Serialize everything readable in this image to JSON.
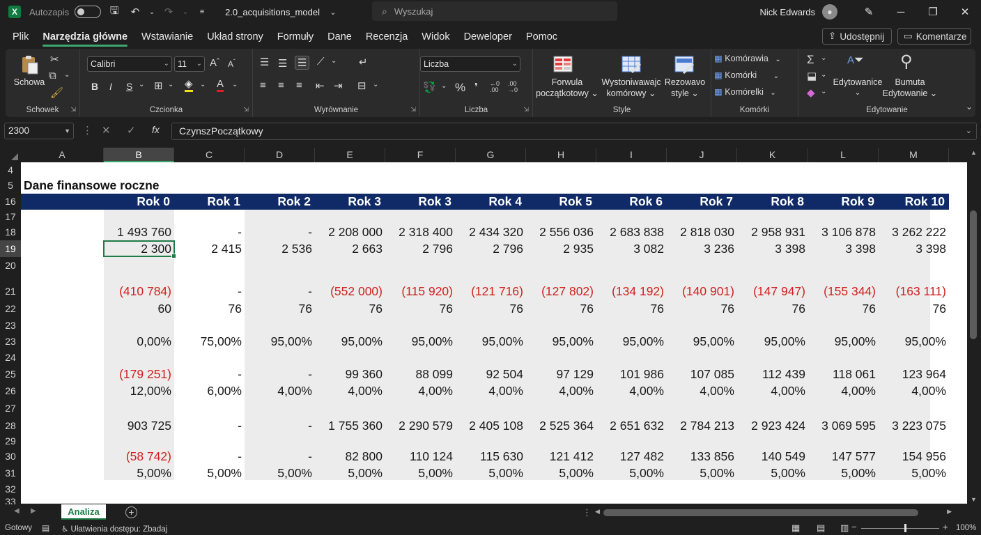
{
  "titlebar": {
    "autosave_label": "Autozapis",
    "filename": "2.0_acquisitions_model",
    "search_placeholder": "Wyszukaj",
    "user_name": "Nick Edwards"
  },
  "menu": {
    "items": [
      "Plik",
      "Narzędzia główne",
      "Wstawianie",
      "Układ strony",
      "Formuły",
      "Dane",
      "Recenzja",
      "Widok",
      "Deweloper",
      "Pomoc"
    ],
    "active_index": 1,
    "share_label": "Udostępnij",
    "comments_label": "Komentarze"
  },
  "ribbon": {
    "clipboard": {
      "paste_label": "Schowa",
      "group_label": "Schowek"
    },
    "font": {
      "font_name": "Calibri",
      "font_size": "11",
      "group_label": "Czcionka",
      "bold": "B",
      "italic": "I",
      "underline": "S"
    },
    "alignment": {
      "group_label": "Wyrównanie"
    },
    "number": {
      "format": "Liczba",
      "group_label": "Liczba",
      "percent": "%",
      "comma": "❜"
    },
    "styles": {
      "conditional_l1": "Forwula",
      "conditional_l2": "początkotowy",
      "table_l1": "Wystoniwawajc",
      "table_l2": "komórowy",
      "cell_l1": "Rezowavo",
      "cell_l2": "style",
      "group_label": "Style"
    },
    "cells": {
      "insert": "Komórawia",
      "delete": "Komórki",
      "format": "Komórelki",
      "group_label": "Komórki"
    },
    "editing": {
      "sort_label": "Edytowanice",
      "find_l1": "Bumuta",
      "find_l2": "Edytowanie",
      "group_label": "Edytowanie"
    }
  },
  "formula_bar": {
    "name_box": "2300",
    "formula": "CzynszPoczątkowy"
  },
  "columns": [
    "A",
    "B",
    "C",
    "D",
    "E",
    "F",
    "G",
    "H",
    "I",
    "J",
    "K",
    "L",
    "M"
  ],
  "selected_column": "B",
  "rows": [
    "4",
    "5",
    "16",
    "17",
    "18",
    "19",
    "20",
    "21",
    "22",
    "23",
    "23",
    "24",
    "25",
    "26",
    "27",
    "28",
    "29",
    "30",
    "31",
    "32",
    "33"
  ],
  "selected_row": "19",
  "sheet": {
    "title": "Dane finansowe roczne",
    "years": [
      "Rok 0",
      "Rok 1",
      "Rok 2",
      "Rok 3",
      "Rok 3",
      "Rok 4",
      "Rok 5",
      "Rok 6",
      "Rok 7",
      "Rok 8",
      "Rok 9",
      "Rok 10"
    ],
    "data_rows": [
      [
        "1 493 760",
        "-",
        "-",
        "2 208 000",
        "2 318 400",
        "2 434 320",
        "2 556 036",
        "2 683 838",
        "2 818 030",
        "2 958 931",
        "3 106 878",
        "3 262 222"
      ],
      [
        "2 300",
        "2 415",
        "2 536",
        "2 663",
        "2 796",
        "2 796",
        "2 935",
        "3 082",
        "3 236",
        "3 398",
        "3 398",
        "3 398"
      ],
      [
        "(410 784)",
        "-",
        "-",
        "(552 000)",
        "(115 920)",
        "(121 716)",
        "(127 802)",
        "(134 192)",
        "(140 901)",
        "(147 947)",
        "(155 344)",
        "(163 111)"
      ],
      [
        "60",
        "76",
        "76",
        "76",
        "76",
        "76",
        "76",
        "76",
        "76",
        "76",
        "76",
        "76"
      ],
      [
        "0,00%",
        "75,00%",
        "95,00%",
        "95,00%",
        "95,00%",
        "95,00%",
        "95,00%",
        "95,00%",
        "95,00%",
        "95,00%",
        "95,00%",
        "95,00%"
      ],
      [
        "(179 251)",
        "-",
        "-",
        "99 360",
        "88 099",
        "92 504",
        "97 129",
        "101 986",
        "107 085",
        "112 439",
        "118 061",
        "123 964"
      ],
      [
        "12,00%",
        "6,00%",
        "4,00%",
        "4,00%",
        "4,00%",
        "4,00%",
        "4,00%",
        "4,00%",
        "4,00%",
        "4,00%",
        "4,00%",
        "4,00%"
      ],
      [
        "903 725",
        "-",
        "-",
        "1 755 360",
        "2 290 579",
        "2 405 108",
        "2 525 364",
        "2 651 632",
        "2 784 213",
        "2 923 424",
        "3 069 595",
        "3 223 075"
      ],
      [
        "(58 742)",
        "-",
        "-",
        "82 800",
        "110 124",
        "115 630",
        "121 412",
        "127 482",
        "133 856",
        "140 549",
        "147 577",
        "154 956"
      ],
      [
        "5,00%",
        "5,00%",
        "5,00%",
        "5,00%",
        "5,00%",
        "5,00%",
        "5,00%",
        "5,00%",
        "5,00%",
        "5,00%",
        "5,00%",
        "5,00%"
      ]
    ]
  },
  "tabs": {
    "active": "Analiza",
    "add_label": "+"
  },
  "status": {
    "ready": "Gotowy",
    "accessibility": "Ułatwienia dostępu: Zbadaj",
    "zoom": "100%"
  },
  "colors": {
    "header_band": "#0f2a66",
    "negative": "#d0201d",
    "accent": "#1e7a46"
  }
}
